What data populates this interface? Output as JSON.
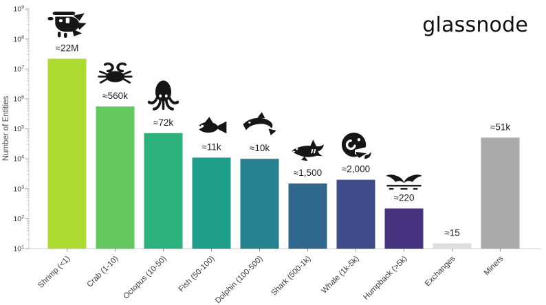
{
  "logo_text": "glassnode",
  "chart_data": {
    "type": "bar",
    "title": "",
    "ylabel": "Number of Entities",
    "xlabel": "",
    "yscale": "log",
    "ylim": [
      10,
      1000000000
    ],
    "grid": false,
    "y_tick_exponents": [
      1,
      2,
      3,
      4,
      5,
      6,
      7,
      8,
      9
    ],
    "categories": [
      "Shrimp (<1)",
      "Crab (1-10)",
      "Octopus (10-50)",
      "Fish (50-100)",
      "Dolphin (100-500)",
      "Shark (500-1k)",
      "Whale (1k-5k)",
      "Humpback (>5k)",
      "Exchanges",
      "Miners"
    ],
    "keys": [
      "shrimp",
      "crab",
      "octopus",
      "fish",
      "dolphin",
      "shark",
      "whale",
      "humpback",
      "exchanges",
      "miners"
    ],
    "values": [
      22000000,
      560000,
      72000,
      11000,
      10000,
      1500,
      2000,
      220,
      15,
      51000
    ],
    "value_labels": [
      "≈22M",
      "≈560k",
      "≈72k",
      "≈11k",
      "≈10k",
      "≈1,500",
      "≈2,000",
      "≈220",
      "≈15",
      "≈51k"
    ],
    "colors": [
      "#aedb32",
      "#63c95f",
      "#2db27e",
      "#1f9e89",
      "#26818e",
      "#31688e",
      "#3e4c8a",
      "#46327e",
      "#dedede",
      "#aaaaaa"
    ],
    "icons": [
      "shrimp-icon",
      "crab-icon",
      "octopus-icon",
      "fish-icon",
      "dolphin-icon",
      "shark-icon",
      "whale-icon",
      "humpback-tail-icon",
      null,
      null
    ],
    "axis_color": "#cfcfcf",
    "tick_color": "#9a9a9a",
    "minor_tick_color": "#c6c6c6",
    "label_color": "#1c1c1c",
    "xtick_label_color": "#3a3a3a",
    "ytick_label_color": "#3a3a3a"
  }
}
